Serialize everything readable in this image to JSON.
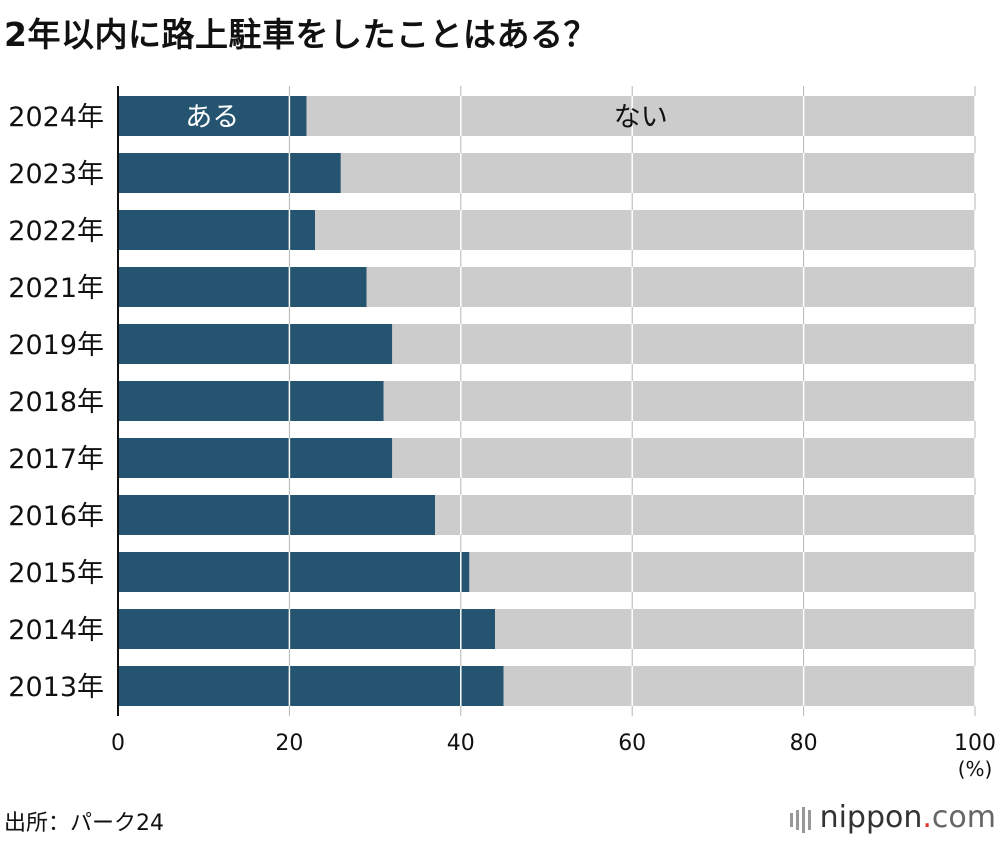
{
  "title": "2年以内に路上駐車をしたことはある？",
  "source": "出所：パーク24",
  "brand": {
    "name": "nippon",
    "dot": ".",
    "tld": "com"
  },
  "chart_data": {
    "type": "bar",
    "orientation": "horizontal",
    "stacked": true,
    "categories": [
      "2024年",
      "2023年",
      "2022年",
      "2021年",
      "2019年",
      "2018年",
      "2017年",
      "2016年",
      "2015年",
      "2014年",
      "2013年"
    ],
    "series": [
      {
        "name": "ある",
        "color": "#24546f",
        "values": [
          22,
          26,
          23,
          29,
          32,
          31,
          32,
          37,
          41,
          44,
          45
        ]
      },
      {
        "name": "ない",
        "color": "#cccccc",
        "values": [
          78,
          74,
          77,
          71,
          68,
          69,
          68,
          63,
          59,
          56,
          55
        ]
      }
    ],
    "xlim": [
      0,
      100
    ],
    "xticks": [
      "0",
      "20",
      "40",
      "60",
      "80",
      "100"
    ],
    "unit": "(%)",
    "grid": true,
    "series_labels_on_first_bar": true
  }
}
